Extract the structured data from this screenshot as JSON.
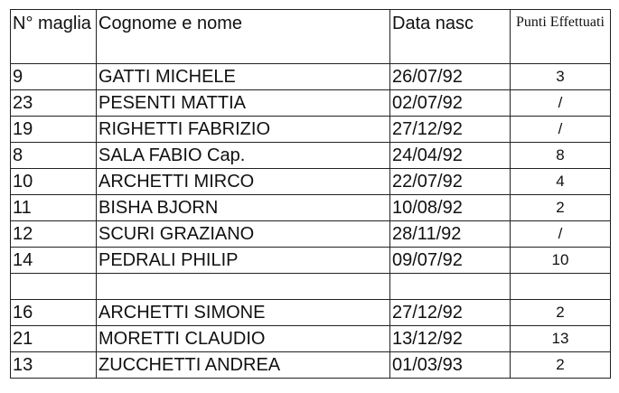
{
  "headers": {
    "number": "N° maglia",
    "name": "Cognome e nome",
    "birth": "Data nasc",
    "points": "Punti Effettuati"
  },
  "rows": [
    {
      "number": "9",
      "name": "GATTI MICHELE",
      "birth": "26/07/92",
      "points": "3"
    },
    {
      "number": "23",
      "name": "PESENTI MATTIA",
      "birth": "02/07/92",
      "points": "/"
    },
    {
      "number": "19",
      "name": "RIGHETTI FABRIZIO",
      "birth": "27/12/92",
      "points": "/"
    },
    {
      "number": "8",
      "name": "SALA FABIO Cap.",
      "birth": "24/04/92",
      "points": "8"
    },
    {
      "number": "10",
      "name": "ARCHETTI MIRCO",
      "birth": "22/07/92",
      "points": "4"
    },
    {
      "number": "11",
      "name": "BISHA BJORN",
      "birth": "10/08/92",
      "points": "2"
    },
    {
      "number": "12",
      "name": "SCURI GRAZIANO",
      "birth": "28/11/92",
      "points": "/"
    },
    {
      "number": "14",
      "name": "PEDRALI PHILIP",
      "birth": "09/07/92",
      "points": "10"
    },
    {
      "number": "",
      "name": "",
      "birth": "",
      "points": ""
    },
    {
      "number": "16",
      "name": "ARCHETTI SIMONE",
      "birth": "27/12/92",
      "points": "2"
    },
    {
      "number": "21",
      "name": "MORETTI CLAUDIO",
      "birth": "13/12/92",
      "points": "13"
    },
    {
      "number": "13",
      "name": "ZUCCHETTI ANDREA",
      "birth": "01/03/93",
      "points": "2"
    }
  ]
}
